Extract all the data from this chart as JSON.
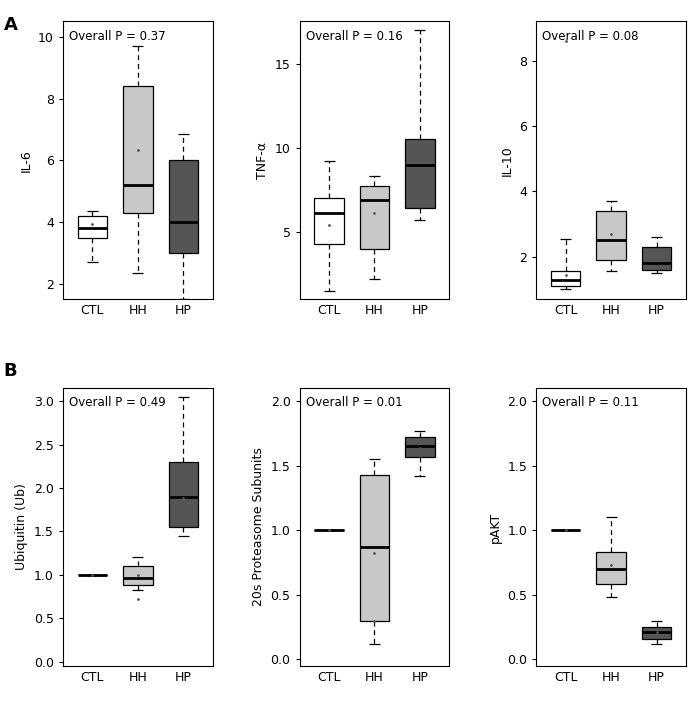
{
  "panel_A": {
    "plots": [
      {
        "title": "Overall P = 0.37",
        "ylabel": "IL-6",
        "ylim": [
          1.5,
          10.5
        ],
        "yticks": [
          2,
          4,
          6,
          8,
          10
        ],
        "groups": [
          "CTL",
          "HH",
          "HP"
        ],
        "colors": [
          "white",
          "#c8c8c8",
          "#555555"
        ],
        "boxes": [
          {
            "q1": 3.5,
            "median": 3.8,
            "q3": 4.2,
            "whisker_low": 2.7,
            "whisker_high": 4.35,
            "mean": 3.95,
            "fliers": []
          },
          {
            "q1": 4.3,
            "median": 5.2,
            "q3": 8.4,
            "whisker_low": 2.35,
            "whisker_high": 9.7,
            "mean": 6.35,
            "fliers": []
          },
          {
            "q1": 3.0,
            "median": 4.0,
            "q3": 6.0,
            "whisker_low": 1.5,
            "whisker_high": 6.85,
            "mean": 4.75,
            "fliers": []
          }
        ]
      },
      {
        "title": "Overall P = 0.16",
        "ylabel": "TNF-α",
        "ylim": [
          1.0,
          17.5
        ],
        "yticks": [
          5,
          10,
          15
        ],
        "groups": [
          "CTL",
          "HH",
          "HP"
        ],
        "colors": [
          "white",
          "#c8c8c8",
          "#555555"
        ],
        "boxes": [
          {
            "q1": 4.3,
            "median": 6.1,
            "q3": 7.0,
            "whisker_low": 1.5,
            "whisker_high": 9.2,
            "mean": 5.4,
            "fliers": []
          },
          {
            "q1": 4.0,
            "median": 6.9,
            "q3": 7.7,
            "whisker_low": 2.2,
            "whisker_high": 8.3,
            "mean": 6.1,
            "fliers": []
          },
          {
            "q1": 6.4,
            "median": 9.0,
            "q3": 10.5,
            "whisker_low": 5.7,
            "whisker_high": 17.0,
            "mean": 8.1,
            "fliers": []
          }
        ]
      },
      {
        "title": "Overall P = 0.08",
        "ylabel": "IL-10",
        "ylim": [
          0.7,
          9.2
        ],
        "yticks": [
          2,
          4,
          6,
          8
        ],
        "groups": [
          "CTL",
          "HH",
          "HP"
        ],
        "colors": [
          "white",
          "#c8c8c8",
          "#555555"
        ],
        "boxes": [
          {
            "q1": 1.1,
            "median": 1.3,
            "q3": 1.55,
            "whisker_low": 1.0,
            "whisker_high": 2.55,
            "mean": 1.45,
            "fliers": [
              8.6
            ]
          },
          {
            "q1": 1.9,
            "median": 2.5,
            "q3": 3.4,
            "whisker_low": 1.55,
            "whisker_high": 3.7,
            "mean": 2.7,
            "fliers": []
          },
          {
            "q1": 1.6,
            "median": 1.8,
            "q3": 2.3,
            "whisker_low": 1.5,
            "whisker_high": 2.6,
            "mean": 2.0,
            "fliers": []
          }
        ]
      }
    ]
  },
  "panel_B": {
    "plots": [
      {
        "title": "Overall P = 0.49",
        "ylabel": "Ubiquitin (Ub)",
        "ylim": [
          -0.05,
          3.15
        ],
        "yticks": [
          0.0,
          0.5,
          1.0,
          1.5,
          2.0,
          2.5,
          3.0
        ],
        "groups": [
          "CTL",
          "HH",
          "HP"
        ],
        "colors": [
          "white",
          "#c8c8c8",
          "#555555"
        ],
        "boxes": [
          {
            "q1": 1.0,
            "median": 1.0,
            "q3": 1.0,
            "whisker_low": 1.0,
            "whisker_high": 1.0,
            "mean": 1.0,
            "fliers": []
          },
          {
            "q1": 0.88,
            "median": 0.96,
            "q3": 1.1,
            "whisker_low": 0.82,
            "whisker_high": 1.2,
            "mean": 1.0,
            "fliers": [
              0.72
            ]
          },
          {
            "q1": 1.55,
            "median": 1.9,
            "q3": 2.3,
            "whisker_low": 1.45,
            "whisker_high": 3.05,
            "mean": 1.88,
            "fliers": []
          }
        ]
      },
      {
        "title": "Overall P = 0.01",
        "ylabel": "20s Proteasome Subunits",
        "ylim": [
          -0.05,
          2.1
        ],
        "yticks": [
          0.0,
          0.5,
          1.0,
          1.5,
          2.0
        ],
        "groups": [
          "CTL",
          "HH",
          "HP"
        ],
        "colors": [
          "white",
          "#c8c8c8",
          "#555555"
        ],
        "boxes": [
          {
            "q1": 1.0,
            "median": 1.0,
            "q3": 1.0,
            "whisker_low": 1.0,
            "whisker_high": 1.0,
            "mean": 1.0,
            "fliers": []
          },
          {
            "q1": 0.3,
            "median": 0.87,
            "q3": 1.43,
            "whisker_low": 0.12,
            "whisker_high": 1.55,
            "mean": 0.82,
            "fliers": [
              0.3
            ]
          },
          {
            "q1": 1.57,
            "median": 1.65,
            "q3": 1.72,
            "whisker_low": 1.42,
            "whisker_high": 1.77,
            "mean": 1.64,
            "fliers": []
          }
        ]
      },
      {
        "title": "Overall P = 0.11",
        "ylabel": "pAKT",
        "ylim": [
          -0.05,
          2.1
        ],
        "yticks": [
          0.0,
          0.5,
          1.0,
          1.5,
          2.0
        ],
        "groups": [
          "CTL",
          "HH",
          "HP"
        ],
        "colors": [
          "white",
          "#c8c8c8",
          "#555555"
        ],
        "boxes": [
          {
            "q1": 1.0,
            "median": 1.0,
            "q3": 1.0,
            "whisker_low": 1.0,
            "whisker_high": 1.0,
            "mean": 1.0,
            "fliers": []
          },
          {
            "q1": 0.58,
            "median": 0.7,
            "q3": 0.83,
            "whisker_low": 0.48,
            "whisker_high": 1.1,
            "mean": 0.73,
            "fliers": []
          },
          {
            "q1": 0.16,
            "median": 0.21,
            "q3": 0.25,
            "whisker_low": 0.12,
            "whisker_high": 0.3,
            "mean": 0.21,
            "fliers": []
          }
        ]
      }
    ]
  }
}
